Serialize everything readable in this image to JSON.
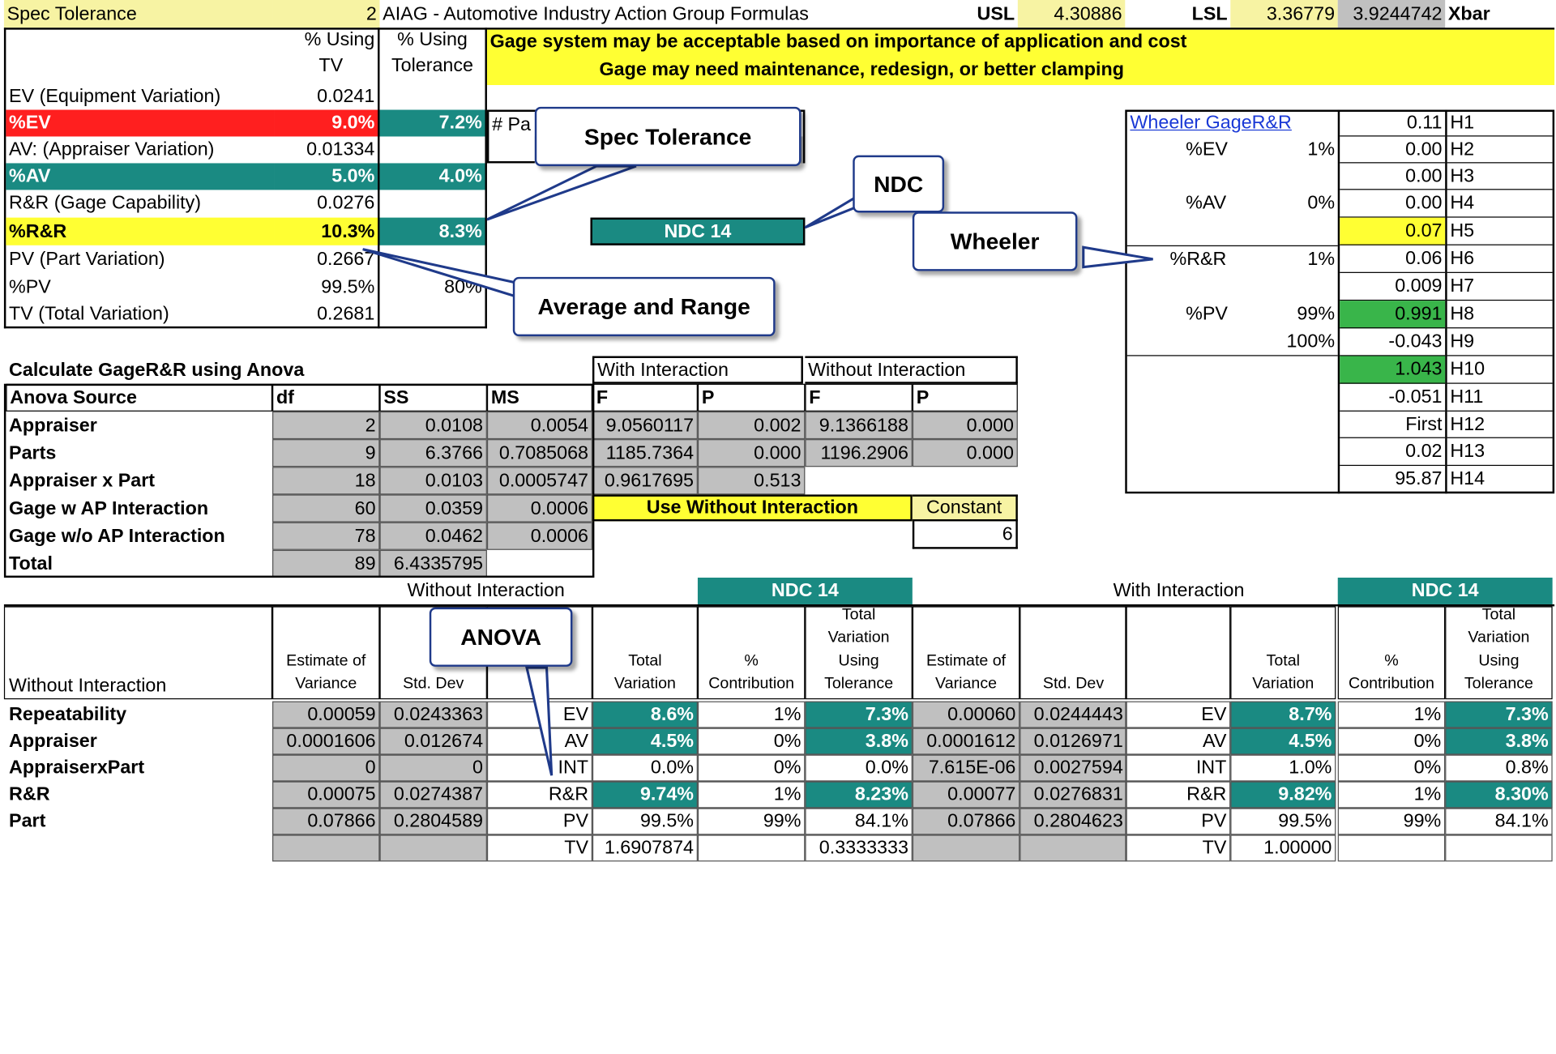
{
  "top_bar": {
    "spec_tol_label": "Spec Tolerance",
    "spec_tol_value": "2",
    "aiag_label": "AIAG - Automotive Industry Action Group Formulas",
    "usl_label": "USL",
    "usl_value": "4.30886",
    "lsl_label": "LSL",
    "lsl_value": "3.36779",
    "xbar_value": "3.9244742",
    "xbar_label": "Xbar"
  },
  "messages": {
    "line1": "Gage system may be acceptable based on importance of application and cost",
    "line2": "Gage may need maintenance, redesign, or better clamping"
  },
  "avg_range": {
    "col1_header_a": "% Using",
    "col1_header_b": "TV",
    "col2_header_a": "% Using",
    "col2_header_b": "Tolerance",
    "rows": [
      {
        "label": "EV (Equipment Variation)",
        "tv": "0.0241",
        "tol": ""
      },
      {
        "label": "%EV",
        "tv": "9.0%",
        "tol": "7.2%"
      },
      {
        "label": "AV: (Appraiser Variation)",
        "tv": "0.01334",
        "tol": ""
      },
      {
        "label": "%AV",
        "tv": "5.0%",
        "tol": "4.0%"
      },
      {
        "label": "R&R (Gage Capability)",
        "tv": "0.0276",
        "tol": ""
      },
      {
        "label": "%R&R",
        "tv": "10.3%",
        "tol": "8.3%"
      },
      {
        "label": "PV (Part Variation)",
        "tv": "0.2667",
        "tol": ""
      },
      {
        "label": "%PV",
        "tv": "99.5%",
        "tol": "80%"
      },
      {
        "label": "TV (Total Variation)",
        "tv": "0.2681",
        "tol": ""
      }
    ],
    "parts_partial": "# Pa",
    "ndc": "NDC 14"
  },
  "wheeler": {
    "title": "Wheeler GageR&R",
    "labels": [
      {
        "name": "%EV",
        "pct": "1%"
      },
      {
        "name": "%AV",
        "pct": "0%"
      },
      {
        "name": "%R&R",
        "pct": "1%"
      },
      {
        "name": "%PV",
        "pct": "99%"
      }
    ],
    "total_pct": "100%",
    "h_values": [
      "0.11",
      "0.00",
      "0.00",
      "0.00",
      "0.07",
      "0.06",
      "0.009",
      "0.991",
      "-0.043",
      "1.043",
      "-0.051",
      "First",
      "0.02",
      "95.87"
    ],
    "h_labels": [
      "H1",
      "H2",
      "H3",
      "H4",
      "H5",
      "H6",
      "H7",
      "H8",
      "H9",
      "H10",
      "H11",
      "H12",
      "H13",
      "H14"
    ]
  },
  "anova": {
    "title": "Calculate GageR&R using Anova",
    "with_interaction": "With Interaction",
    "without_interaction": "Without Interaction",
    "headers": [
      "Anova Source",
      "df",
      "SS",
      "MS",
      "F",
      "P",
      "F",
      "P"
    ],
    "rows": [
      [
        "Appraiser",
        "2",
        "0.0108",
        "0.0054",
        "9.0560117",
        "0.002",
        "9.1366188",
        "0.000"
      ],
      [
        "Parts",
        "9",
        "6.3766",
        "0.7085068",
        "1185.7364",
        "0.000",
        "1196.2906",
        "0.000"
      ],
      [
        "Appraiser x Part",
        "18",
        "0.0103",
        "0.0005747",
        "0.9617695",
        "0.513",
        "",
        ""
      ],
      [
        "Gage w AP Interaction",
        "60",
        "0.0359",
        "0.0006",
        "",
        "",
        "",
        ""
      ],
      [
        "Gage w/o AP Interaction",
        "78",
        "0.0462",
        "0.0006",
        "",
        "",
        "",
        ""
      ],
      [
        "Total",
        "89",
        "6.4335795",
        "",
        "",
        "",
        "",
        ""
      ]
    ],
    "use_label": "Use Without Interaction",
    "constant_label": "Constant",
    "constant_value": "6"
  },
  "results": {
    "without_title": "Without Interaction",
    "with_title": "With Interaction",
    "ndc_left": "NDC 14",
    "ndc_right": "NDC 14",
    "corner_label": "Without  Interaction",
    "col_headers": {
      "estimate": [
        "Estimate of",
        "Variance"
      ],
      "stddev": "Std. Dev",
      "total_variation": [
        "Total",
        "Variation"
      ],
      "contribution": [
        "%",
        "Contribution"
      ],
      "tv_tol": [
        "Total",
        "Variation",
        "Using",
        "Tolerance"
      ]
    },
    "row_labels": [
      "Repeatability",
      "Appraiser",
      "AppraiserxPart",
      "R&R",
      "Part",
      ""
    ],
    "left_rows": [
      [
        "0.00059",
        "0.0243363",
        "EV",
        "8.6%",
        "1%",
        "7.3%"
      ],
      [
        "0.0001606",
        "0.012674",
        "AV",
        "4.5%",
        "0%",
        "3.8%"
      ],
      [
        "0",
        "0",
        "INT",
        "0.0%",
        "0%",
        "0.0%"
      ],
      [
        "0.00075",
        "0.0274387",
        "R&R",
        "9.74%",
        "1%",
        "8.23%"
      ],
      [
        "0.07866",
        "0.2804589",
        "PV",
        "99.5%",
        "99%",
        "84.1%"
      ],
      [
        "",
        "",
        "TV",
        "1.6907874",
        "",
        "0.3333333"
      ]
    ],
    "right_rows": [
      [
        "0.00060",
        "0.0244443",
        "EV",
        "8.7%",
        "1%",
        "7.3%"
      ],
      [
        "0.0001612",
        "0.0126971",
        "AV",
        "4.5%",
        "0%",
        "3.8%"
      ],
      [
        "7.615E-06",
        "0.0027594",
        "INT",
        "1.0%",
        "0%",
        "0.8%"
      ],
      [
        "0.00077",
        "0.0276831",
        "R&R",
        "9.82%",
        "1%",
        "8.30%"
      ],
      [
        "0.07866",
        "0.2804623",
        "PV",
        "99.5%",
        "99%",
        "84.1%"
      ],
      [
        "",
        "",
        "TV",
        "1.00000",
        "",
        ""
      ]
    ]
  },
  "callouts": {
    "spec": "Spec Tolerance",
    "ndc": "NDC",
    "wheeler": "Wheeler",
    "avg": "Average and Range",
    "anova": "ANOVA"
  },
  "colors": {
    "teal": "#1a8a82",
    "red": "#ff1f1f",
    "yellow": "#ffff33",
    "header_tan": "#f7f3a3",
    "gray": "#c0c0c0",
    "green": "#39b54a",
    "callout_border": "#1f3a8a"
  }
}
